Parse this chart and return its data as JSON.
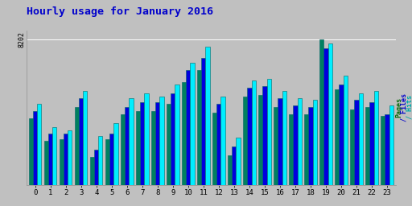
{
  "title": "Hourly usage for January 2016",
  "title_color": "#0000cc",
  "title_fontsize": 9.5,
  "background_color": "#c0c0c0",
  "plot_bg_color": "#c0c0c0",
  "grid_color": "#ffffff",
  "max_label": "8202",
  "hours": [
    0,
    1,
    2,
    3,
    4,
    5,
    6,
    7,
    8,
    9,
    10,
    11,
    12,
    13,
    14,
    15,
    16,
    17,
    18,
    19,
    20,
    21,
    22,
    23
  ],
  "pages": [
    3800,
    2500,
    2600,
    4400,
    1600,
    2600,
    4000,
    4200,
    4200,
    4600,
    5800,
    6500,
    4100,
    1700,
    5000,
    5100,
    4400,
    4000,
    4000,
    8202,
    5400,
    4300,
    4400,
    3900
  ],
  "files": [
    4200,
    2900,
    2900,
    4900,
    2000,
    2900,
    4400,
    4700,
    4700,
    5200,
    6500,
    7200,
    4600,
    2200,
    5500,
    5600,
    4900,
    4500,
    4400,
    7700,
    5700,
    4800,
    4700,
    4000
  ],
  "hits": [
    4600,
    3300,
    3100,
    5300,
    2800,
    3500,
    4900,
    5200,
    5000,
    5700,
    6900,
    7800,
    5000,
    2700,
    5900,
    6000,
    5300,
    4900,
    4800,
    8000,
    6200,
    5200,
    5300,
    4500
  ],
  "color_pages": "#008060",
  "color_files": "#0000dd",
  "color_hits": "#00eeff",
  "bar_edge_color": "#006666",
  "ylim_max": 8700,
  "bar_width": 0.27,
  "right_label_pages_color": "#006600",
  "right_label_files_color": "#0000cc",
  "right_label_hits_color": "#00aaaa"
}
